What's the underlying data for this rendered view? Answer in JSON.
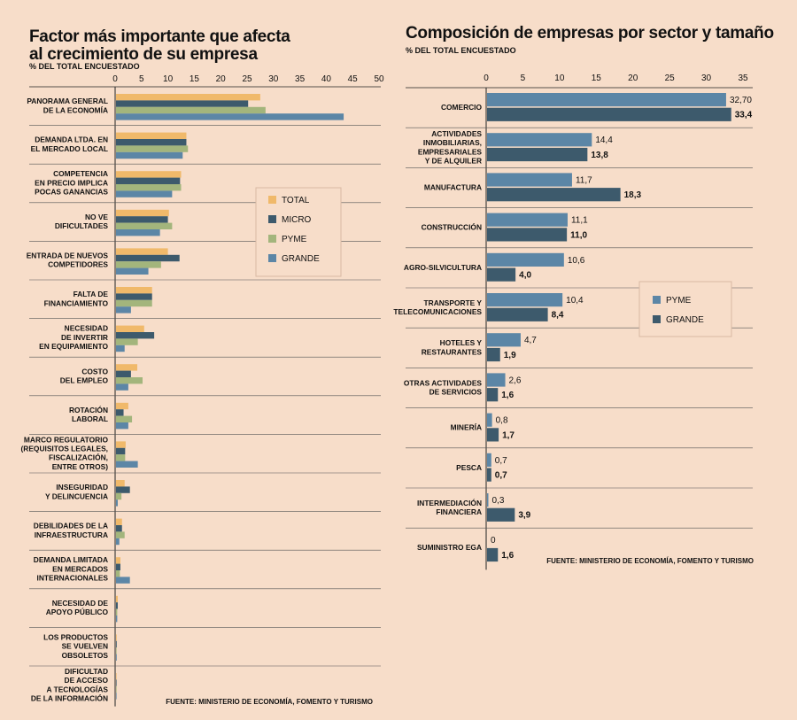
{
  "chart_data": [
    {
      "type": "bar",
      "orientation": "horizontal",
      "title_lines": [
        "Factor más importante que afecta",
        "al crecimiento de su empresa"
      ],
      "subtitle": "% DEL TOTAL ENCUESTADO",
      "source": "FUENTE: MINISTERIO DE ECONOMÍA, FOMENTO Y TURISMO",
      "xlim": [
        0,
        50
      ],
      "ticks": [
        "0",
        "5",
        "10",
        "15",
        "20",
        "25",
        "30",
        "35",
        "40",
        "45",
        "50"
      ],
      "legend_position": "right-middle",
      "categories": [
        [
          "PANORAMA GENERAL",
          "DE LA ECONOMÍA"
        ],
        [
          "DEMANDA LTDA. EN",
          "EL MERCADO LOCAL"
        ],
        [
          "COMPETENCIA",
          "EN PRECIO IMPLICA",
          "POCAS GANANCIAS"
        ],
        [
          "NO VE",
          "DIFICULTADES"
        ],
        [
          "ENTRADA DE NUEVOS",
          "COMPETIDORES"
        ],
        [
          "FALTA DE",
          "FINANCIAMIENTO"
        ],
        [
          "NECESIDAD",
          "DE INVERTIR",
          "EN EQUIPAMIENTO"
        ],
        [
          "COSTO",
          "DEL EMPLEO"
        ],
        [
          "ROTACIÓN",
          "LABORAL"
        ],
        [
          "MARCO REGULATORIO",
          "(REQUISITOS LEGALES,",
          "FISCALIZACIÓN,",
          "ENTRE OTROS)"
        ],
        [
          "INSEGURIDAD",
          "Y DELINCUENCIA"
        ],
        [
          "DEBILIDADES DE LA",
          "INFRAESTRUCTURA"
        ],
        [
          "DEMANDA LIMITADA",
          "EN MERCADOS",
          "INTERNACIONALES"
        ],
        [
          "NECESIDAD DE",
          "APOYO PÚBLICO"
        ],
        [
          "LOS PRODUCTOS",
          "SE VUELVEN",
          "OBSOLETOS"
        ],
        [
          "DIFICULTAD",
          "DE ACCESO",
          "A TECNOLOGÍAS",
          "DE LA INFORMACIÓN"
        ]
      ],
      "series": [
        {
          "name": "TOTAL",
          "color": "#f0b96a",
          "values": [
            27.5,
            13.5,
            12.5,
            10.2,
            10.0,
            7.0,
            5.5,
            4.2,
            2.5,
            2.0,
            1.8,
            1.3,
            1.0,
            0.5,
            0.3,
            0.1
          ]
        },
        {
          "name": "MICRO",
          "color": "#3d5a6c",
          "values": [
            25.2,
            13.5,
            12.3,
            10.0,
            12.2,
            7.0,
            7.4,
            3.0,
            1.6,
            1.9,
            2.8,
            1.3,
            1.0,
            0.5,
            0.3,
            0.1
          ]
        },
        {
          "name": "PYME",
          "color": "#a3b57c",
          "values": [
            28.5,
            13.8,
            12.5,
            10.8,
            8.7,
            7.0,
            4.3,
            5.2,
            3.2,
            1.9,
            1.2,
            1.8,
            0.9,
            0.4,
            0.2,
            0.1
          ]
        },
        {
          "name": "GRANDE",
          "color": "#5c86a6",
          "values": [
            43.3,
            12.8,
            10.8,
            8.5,
            6.3,
            3.0,
            1.8,
            2.5,
            2.5,
            4.3,
            0.5,
            0.8,
            2.8,
            0.4,
            0.3,
            0.1
          ]
        }
      ]
    },
    {
      "type": "bar",
      "orientation": "horizontal",
      "title": "Composición de empresas por sector y tamaño",
      "subtitle": "% DEL TOTAL ENCUESTADO",
      "source": "FUENTE: MINISTERIO DE ECONOMÍA, FOMENTO Y TURISMO",
      "xlim": [
        0,
        35
      ],
      "ticks": [
        "0",
        "5",
        "10",
        "15",
        "20",
        "25",
        "30",
        "35"
      ],
      "legend_position": "right-middle",
      "categories": [
        [
          "COMERCIO"
        ],
        [
          "ACTIVIDADES",
          "INMOBILIARIAS,",
          "EMPRESARIALES",
          "Y DE ALQUILER"
        ],
        [
          "MANUFACTURA"
        ],
        [
          "CONSTRUCCIÓN"
        ],
        [
          "AGRO-SILVICULTURA"
        ],
        [
          "TRANSPORTE Y",
          "TELECOMUNICACIONES"
        ],
        [
          "HOTELES Y",
          "RESTAURANTES"
        ],
        [
          "OTRAS ACTIVIDADES",
          "DE SERVICIOS"
        ],
        [
          "MINERÍA"
        ],
        [
          "PESCA"
        ],
        [
          "INTERMEDIACIÓN",
          "FINANCIERA"
        ],
        [
          "SUMINISTRO EGA"
        ]
      ],
      "series": [
        {
          "name": "PYME",
          "color": "#5c86a6",
          "values": [
            32.7,
            14.4,
            11.7,
            11.1,
            10.6,
            10.4,
            4.7,
            2.6,
            0.8,
            0.7,
            0.3,
            0
          ],
          "labels": [
            "32,70",
            "14,4",
            "11,7",
            "11,1",
            "10,6",
            "10,4",
            "4,7",
            "2,6",
            "0,8",
            "0,7",
            "0,3",
            "0"
          ]
        },
        {
          "name": "GRANDE",
          "color": "#3d5a6c",
          "values": [
            33.4,
            13.8,
            18.3,
            11.0,
            4.0,
            8.4,
            1.9,
            1.6,
            1.7,
            0.7,
            3.9,
            1.6
          ],
          "labels": [
            "33,4",
            "13,8",
            "18,3",
            "11,0",
            "4,0",
            "8,4",
            "1,9",
            "1,6",
            "1,7",
            "0,7",
            "3,9",
            "1,6"
          ]
        }
      ]
    }
  ]
}
